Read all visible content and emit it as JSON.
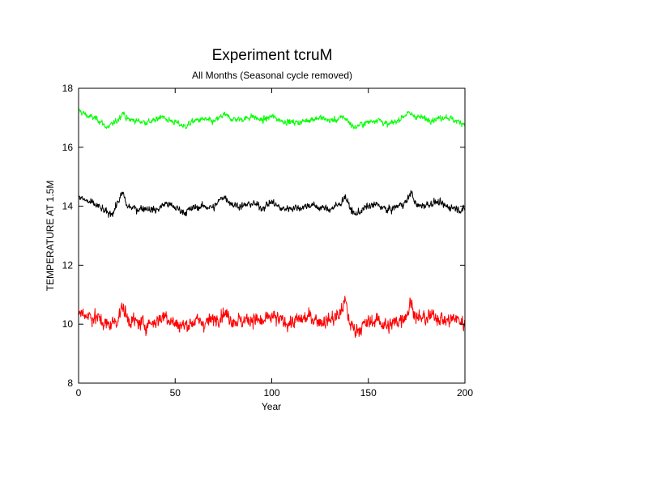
{
  "chart_data": {
    "type": "line",
    "title": "Experiment tcruM",
    "subtitle": "All Months (Seasonal cycle removed)",
    "xlabel": "Year",
    "ylabel": "TEMPERATURE AT 1.5M",
    "xlim": [
      0,
      200
    ],
    "ylim": [
      8,
      18
    ],
    "xticks": [
      0,
      50,
      100,
      150,
      200
    ],
    "yticks": [
      8,
      10,
      12,
      14,
      16,
      18
    ],
    "grid": false,
    "legend": "none",
    "series": [
      {
        "color": "#00ff00",
        "mean": 16.95,
        "x": [
          0,
          5,
          10,
          15,
          20,
          23,
          25,
          30,
          35,
          40,
          43,
          45,
          50,
          55,
          60,
          65,
          70,
          75,
          80,
          85,
          90,
          95,
          100,
          105,
          110,
          115,
          120,
          125,
          130,
          135,
          137,
          140,
          143,
          145,
          150,
          155,
          160,
          165,
          170,
          175,
          180,
          185,
          190,
          195,
          200
        ],
        "values": [
          17.25,
          17.05,
          16.95,
          16.65,
          16.9,
          17.2,
          16.95,
          16.9,
          16.85,
          16.9,
          17.1,
          16.95,
          16.85,
          16.7,
          16.9,
          16.95,
          16.85,
          17.1,
          16.95,
          16.95,
          17.05,
          16.9,
          17.05,
          16.9,
          16.85,
          16.85,
          16.95,
          17.0,
          16.9,
          16.95,
          17.05,
          16.85,
          16.65,
          16.75,
          16.85,
          16.95,
          16.75,
          16.9,
          17.15,
          17.05,
          16.95,
          16.95,
          17.05,
          16.9,
          16.8
        ]
      },
      {
        "color": "#000000",
        "mean": 14.0,
        "x": [
          0,
          5,
          10,
          15,
          18,
          20,
          23,
          25,
          30,
          35,
          40,
          45,
          50,
          55,
          60,
          65,
          70,
          75,
          80,
          85,
          90,
          95,
          100,
          105,
          110,
          115,
          120,
          125,
          130,
          135,
          138,
          140,
          143,
          145,
          150,
          155,
          160,
          165,
          170,
          172,
          175,
          180,
          185,
          190,
          195,
          200
        ],
        "values": [
          14.3,
          14.15,
          14.0,
          13.75,
          13.8,
          14.1,
          14.45,
          14.0,
          13.9,
          13.95,
          13.85,
          14.1,
          13.95,
          13.8,
          13.95,
          14.0,
          13.95,
          14.35,
          14.05,
          14.0,
          14.1,
          13.95,
          14.15,
          13.9,
          13.95,
          13.95,
          14.05,
          13.95,
          13.9,
          14.05,
          14.35,
          14.0,
          13.7,
          13.8,
          14.0,
          14.05,
          13.85,
          14.0,
          14.15,
          14.5,
          14.0,
          14.05,
          14.15,
          14.0,
          13.95,
          13.85
        ]
      },
      {
        "color": "#ff0000",
        "mean": 10.15,
        "x": [
          0,
          5,
          10,
          15,
          20,
          23,
          25,
          30,
          35,
          40,
          45,
          50,
          55,
          60,
          65,
          70,
          75,
          80,
          85,
          90,
          95,
          100,
          105,
          110,
          115,
          120,
          125,
          130,
          135,
          138,
          140,
          143,
          145,
          150,
          155,
          160,
          165,
          170,
          172,
          175,
          180,
          185,
          190,
          195,
          200
        ],
        "values": [
          10.4,
          10.3,
          10.2,
          9.95,
          10.15,
          10.6,
          10.2,
          10.05,
          10.0,
          10.1,
          10.3,
          10.0,
          9.95,
          10.1,
          10.05,
          10.15,
          10.4,
          10.15,
          10.1,
          10.2,
          10.05,
          10.25,
          10.1,
          10.05,
          10.15,
          10.25,
          10.1,
          10.15,
          10.3,
          10.8,
          10.1,
          9.8,
          9.85,
          10.05,
          10.15,
          9.9,
          10.1,
          10.35,
          10.75,
          10.2,
          10.2,
          10.3,
          10.1,
          10.2,
          10.0
        ]
      }
    ]
  }
}
